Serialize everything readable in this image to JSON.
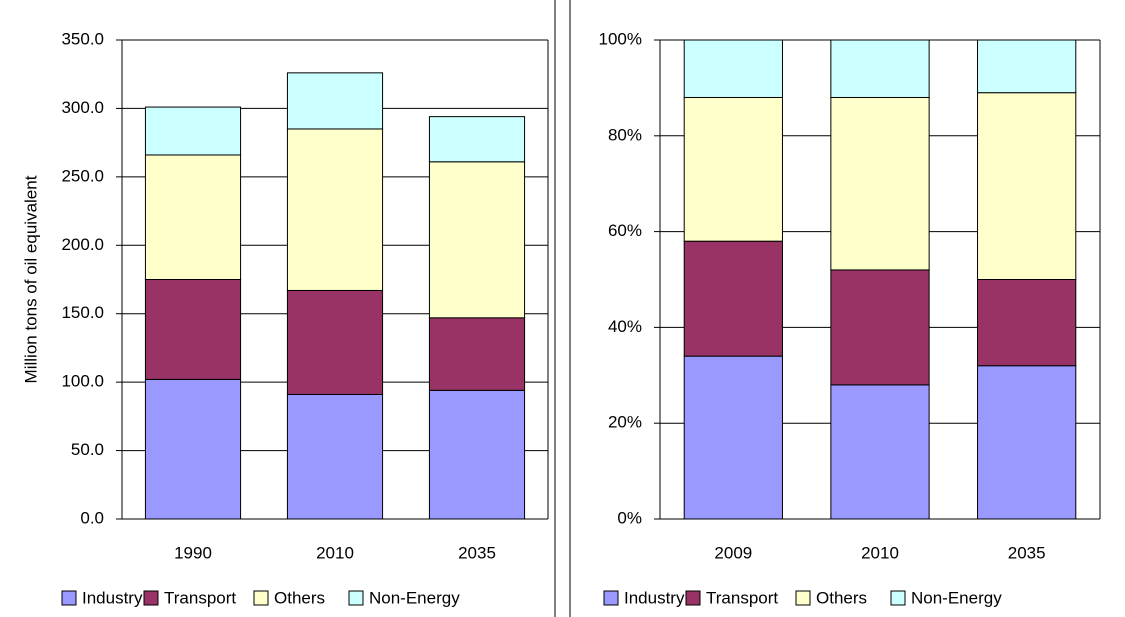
{
  "chart_data": [
    {
      "type": "bar",
      "stacked": true,
      "y_label": "Million tons of oil equivalent",
      "categories": [
        "1990",
        "2010",
        "2035"
      ],
      "series": [
        {
          "name": "Industry",
          "color": "#9999ff",
          "values": [
            102,
            91,
            94
          ]
        },
        {
          "name": "Transport",
          "color": "#993366",
          "values": [
            73,
            76,
            53
          ]
        },
        {
          "name": "Others",
          "color": "#ffffcc",
          "values": [
            91,
            118,
            114
          ]
        },
        {
          "name": "Non-Energy",
          "color": "#ccffff",
          "values": [
            35,
            41,
            33
          ]
        }
      ],
      "ylim": [
        0,
        350
      ],
      "yticks": [
        {
          "value": 0,
          "label": "0.0"
        },
        {
          "value": 50,
          "label": "50.0"
        },
        {
          "value": 100,
          "label": "100.0"
        },
        {
          "value": 150,
          "label": "150.0"
        },
        {
          "value": 200,
          "label": "200.0"
        },
        {
          "value": 250,
          "label": "250.0"
        },
        {
          "value": 300,
          "label": "300.0"
        },
        {
          "value": 350,
          "label": "350.0"
        }
      ],
      "grid": true,
      "legend": "bottom"
    },
    {
      "type": "bar",
      "stacked": true,
      "categories": [
        "2009",
        "2010",
        "2035"
      ],
      "series": [
        {
          "name": "Industry",
          "color": "#9999ff",
          "values": [
            34,
            28,
            32
          ]
        },
        {
          "name": "Transport",
          "color": "#993366",
          "values": [
            24,
            24,
            18
          ]
        },
        {
          "name": "Others",
          "color": "#ffffcc",
          "values": [
            30,
            36,
            39
          ]
        },
        {
          "name": "Non-Energy",
          "color": "#ccffff",
          "values": [
            12,
            12,
            11
          ]
        }
      ],
      "ylim": [
        0,
        100
      ],
      "yticks": [
        {
          "value": 0,
          "label": "0%"
        },
        {
          "value": 20,
          "label": "20%"
        },
        {
          "value": 40,
          "label": "40%"
        },
        {
          "value": 60,
          "label": "60%"
        },
        {
          "value": 80,
          "label": "80%"
        },
        {
          "value": 100,
          "label": "100%"
        }
      ],
      "grid": true,
      "legend": "bottom"
    }
  ]
}
